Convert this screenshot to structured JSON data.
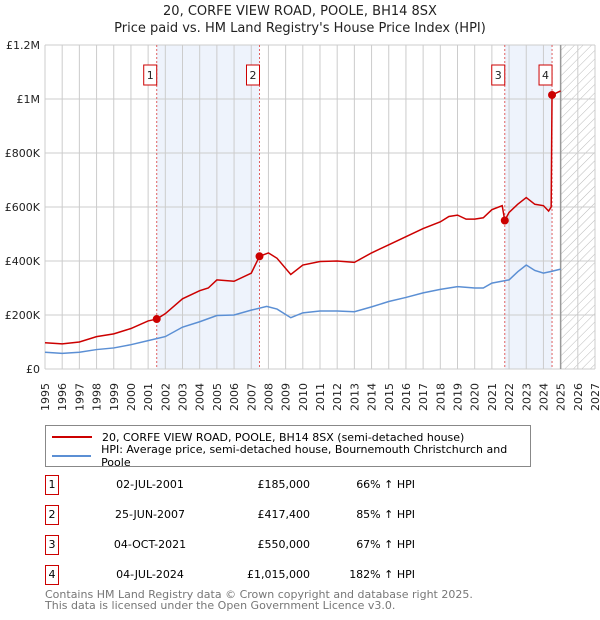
{
  "chart_data": {
    "type": "line",
    "title": "20, CORFE VIEW ROAD, POOLE, BH14 8SX",
    "subtitle": "Price paid vs. HM Land Registry's House Price Index (HPI)",
    "xlim": [
      1995,
      2027
    ],
    "ylim": [
      0,
      1200000
    ],
    "x_ticks": [
      "1995",
      "1996",
      "1997",
      "1998",
      "1999",
      "2000",
      "2001",
      "2002",
      "2003",
      "2004",
      "2005",
      "2006",
      "2007",
      "2008",
      "2009",
      "2010",
      "2011",
      "2012",
      "2013",
      "2014",
      "2015",
      "2016",
      "2017",
      "2018",
      "2019",
      "2020",
      "2021",
      "2022",
      "2023",
      "2024",
      "2025",
      "2026",
      "2027"
    ],
    "y_ticks": [
      {
        "v": 0,
        "label": "£0"
      },
      {
        "v": 200000,
        "label": "£200K"
      },
      {
        "v": 400000,
        "label": "£400K"
      },
      {
        "v": 600000,
        "label": "£600K"
      },
      {
        "v": 800000,
        "label": "£800K"
      },
      {
        "v": 1000000,
        "label": "£1M"
      },
      {
        "v": 1200000,
        "label": "£1.2M"
      }
    ],
    "grid": true,
    "forecast_hatch_from": 2025,
    "series": [
      {
        "name": "20, CORFE VIEW ROAD, POOLE, BH14 8SX (semi-detached house)",
        "color": "#cc0000",
        "x": [
          1995,
          1996,
          1997,
          1998,
          1999,
          2000,
          2001,
          2001.5,
          2002,
          2003,
          2004,
          2004.5,
          2005,
          2006,
          2007,
          2007.48,
          2008,
          2008.5,
          2009.3,
          2010,
          2011,
          2012,
          2013,
          2014,
          2015,
          2016,
          2017,
          2018,
          2018.5,
          2019,
          2019.5,
          2020,
          2020.5,
          2021,
          2021.6,
          2021.75,
          2022,
          2022.5,
          2023,
          2023.5,
          2024,
          2024.3,
          2024.45,
          2024.5,
          2025
        ],
        "y": [
          97000,
          93000,
          100000,
          120000,
          130000,
          150000,
          178000,
          185000,
          205000,
          260000,
          290000,
          300000,
          330000,
          325000,
          355000,
          417400,
          430000,
          410000,
          350000,
          385000,
          398000,
          400000,
          395000,
          430000,
          460000,
          490000,
          520000,
          545000,
          565000,
          570000,
          555000,
          555000,
          560000,
          590000,
          605000,
          550000,
          580000,
          610000,
          635000,
          610000,
          605000,
          585000,
          600000,
          1015000,
          1030000
        ]
      },
      {
        "name": "HPI: Average price, semi-detached house, Bournemouth Christchurch and Poole",
        "color": "#5b8fd4",
        "x": [
          1995,
          1996,
          1997,
          1998,
          1999,
          2000,
          2001,
          2002,
          2003,
          2004,
          2005,
          2006,
          2007,
          2007.9,
          2008.5,
          2009.3,
          2010,
          2011,
          2012,
          2013,
          2014,
          2015,
          2016,
          2017,
          2018,
          2019,
          2020,
          2020.5,
          2021,
          2022,
          2022.5,
          2023,
          2023.5,
          2024,
          2024.5,
          2025
        ],
        "y": [
          62000,
          58000,
          62000,
          72000,
          78000,
          90000,
          105000,
          120000,
          155000,
          175000,
          198000,
          200000,
          218000,
          232000,
          222000,
          190000,
          208000,
          215000,
          215000,
          212000,
          230000,
          250000,
          265000,
          282000,
          295000,
          305000,
          300000,
          300000,
          318000,
          330000,
          360000,
          385000,
          365000,
          355000,
          362000,
          370000
        ]
      }
    ],
    "sales": [
      {
        "n": "1",
        "x": 2001.5,
        "date": "02-JUL-2001",
        "price": 185000,
        "price_label": "£185,000",
        "hpi": "66% ↑ HPI"
      },
      {
        "n": "2",
        "x": 2007.48,
        "date": "25-JUN-2007",
        "price": 417400,
        "price_label": "£417,400",
        "hpi": "85% ↑ HPI"
      },
      {
        "n": "3",
        "x": 2021.75,
        "date": "04-OCT-2021",
        "price": 550000,
        "price_label": "£550,000",
        "hpi": "67% ↑ HPI"
      },
      {
        "n": "4",
        "x": 2024.5,
        "date": "04-JUL-2024",
        "price": 1015000,
        "price_label": "£1,015,000",
        "hpi": "182% ↑ HPI"
      }
    ]
  },
  "footer": {
    "line1": "Contains HM Land Registry data © Crown copyright and database right 2025.",
    "line2": "This data is licensed under the Open Government Licence v3.0."
  }
}
